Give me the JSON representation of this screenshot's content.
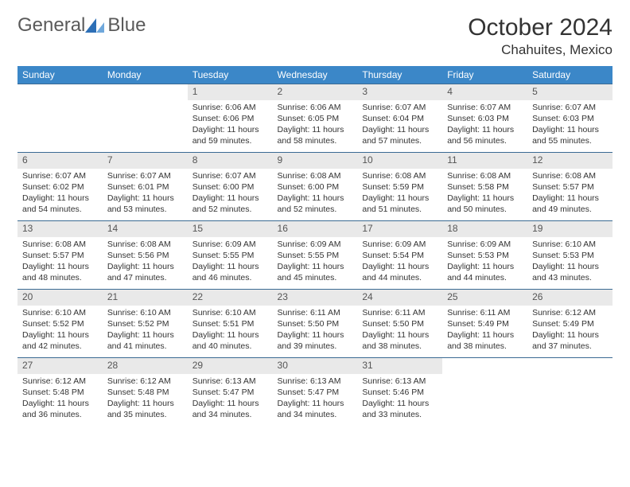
{
  "logo": {
    "text1": "General",
    "text2": "Blue",
    "mark_color": "#2d6fb6"
  },
  "title": "October 2024",
  "location": "Chahuites, Mexico",
  "colors": {
    "header_bg": "#3b87c8",
    "header_text": "#ffffff",
    "daynum_bg": "#e9e9e9",
    "divider": "#3b6a93",
    "text": "#333333"
  },
  "fonts": {
    "title_size": 30,
    "location_size": 17,
    "header_size": 12,
    "daynum_size": 12,
    "info_size": 10.5
  },
  "day_headers": [
    "Sunday",
    "Monday",
    "Tuesday",
    "Wednesday",
    "Thursday",
    "Friday",
    "Saturday"
  ],
  "weeks": [
    [
      {
        "n": "",
        "sunrise": "",
        "sunset": "",
        "daylight": ""
      },
      {
        "n": "",
        "sunrise": "",
        "sunset": "",
        "daylight": ""
      },
      {
        "n": "1",
        "sunrise": "Sunrise: 6:06 AM",
        "sunset": "Sunset: 6:06 PM",
        "daylight": "Daylight: 11 hours and 59 minutes."
      },
      {
        "n": "2",
        "sunrise": "Sunrise: 6:06 AM",
        "sunset": "Sunset: 6:05 PM",
        "daylight": "Daylight: 11 hours and 58 minutes."
      },
      {
        "n": "3",
        "sunrise": "Sunrise: 6:07 AM",
        "sunset": "Sunset: 6:04 PM",
        "daylight": "Daylight: 11 hours and 57 minutes."
      },
      {
        "n": "4",
        "sunrise": "Sunrise: 6:07 AM",
        "sunset": "Sunset: 6:03 PM",
        "daylight": "Daylight: 11 hours and 56 minutes."
      },
      {
        "n": "5",
        "sunrise": "Sunrise: 6:07 AM",
        "sunset": "Sunset: 6:03 PM",
        "daylight": "Daylight: 11 hours and 55 minutes."
      }
    ],
    [
      {
        "n": "6",
        "sunrise": "Sunrise: 6:07 AM",
        "sunset": "Sunset: 6:02 PM",
        "daylight": "Daylight: 11 hours and 54 minutes."
      },
      {
        "n": "7",
        "sunrise": "Sunrise: 6:07 AM",
        "sunset": "Sunset: 6:01 PM",
        "daylight": "Daylight: 11 hours and 53 minutes."
      },
      {
        "n": "8",
        "sunrise": "Sunrise: 6:07 AM",
        "sunset": "Sunset: 6:00 PM",
        "daylight": "Daylight: 11 hours and 52 minutes."
      },
      {
        "n": "9",
        "sunrise": "Sunrise: 6:08 AM",
        "sunset": "Sunset: 6:00 PM",
        "daylight": "Daylight: 11 hours and 52 minutes."
      },
      {
        "n": "10",
        "sunrise": "Sunrise: 6:08 AM",
        "sunset": "Sunset: 5:59 PM",
        "daylight": "Daylight: 11 hours and 51 minutes."
      },
      {
        "n": "11",
        "sunrise": "Sunrise: 6:08 AM",
        "sunset": "Sunset: 5:58 PM",
        "daylight": "Daylight: 11 hours and 50 minutes."
      },
      {
        "n": "12",
        "sunrise": "Sunrise: 6:08 AM",
        "sunset": "Sunset: 5:57 PM",
        "daylight": "Daylight: 11 hours and 49 minutes."
      }
    ],
    [
      {
        "n": "13",
        "sunrise": "Sunrise: 6:08 AM",
        "sunset": "Sunset: 5:57 PM",
        "daylight": "Daylight: 11 hours and 48 minutes."
      },
      {
        "n": "14",
        "sunrise": "Sunrise: 6:08 AM",
        "sunset": "Sunset: 5:56 PM",
        "daylight": "Daylight: 11 hours and 47 minutes."
      },
      {
        "n": "15",
        "sunrise": "Sunrise: 6:09 AM",
        "sunset": "Sunset: 5:55 PM",
        "daylight": "Daylight: 11 hours and 46 minutes."
      },
      {
        "n": "16",
        "sunrise": "Sunrise: 6:09 AM",
        "sunset": "Sunset: 5:55 PM",
        "daylight": "Daylight: 11 hours and 45 minutes."
      },
      {
        "n": "17",
        "sunrise": "Sunrise: 6:09 AM",
        "sunset": "Sunset: 5:54 PM",
        "daylight": "Daylight: 11 hours and 44 minutes."
      },
      {
        "n": "18",
        "sunrise": "Sunrise: 6:09 AM",
        "sunset": "Sunset: 5:53 PM",
        "daylight": "Daylight: 11 hours and 44 minutes."
      },
      {
        "n": "19",
        "sunrise": "Sunrise: 6:10 AM",
        "sunset": "Sunset: 5:53 PM",
        "daylight": "Daylight: 11 hours and 43 minutes."
      }
    ],
    [
      {
        "n": "20",
        "sunrise": "Sunrise: 6:10 AM",
        "sunset": "Sunset: 5:52 PM",
        "daylight": "Daylight: 11 hours and 42 minutes."
      },
      {
        "n": "21",
        "sunrise": "Sunrise: 6:10 AM",
        "sunset": "Sunset: 5:52 PM",
        "daylight": "Daylight: 11 hours and 41 minutes."
      },
      {
        "n": "22",
        "sunrise": "Sunrise: 6:10 AM",
        "sunset": "Sunset: 5:51 PM",
        "daylight": "Daylight: 11 hours and 40 minutes."
      },
      {
        "n": "23",
        "sunrise": "Sunrise: 6:11 AM",
        "sunset": "Sunset: 5:50 PM",
        "daylight": "Daylight: 11 hours and 39 minutes."
      },
      {
        "n": "24",
        "sunrise": "Sunrise: 6:11 AM",
        "sunset": "Sunset: 5:50 PM",
        "daylight": "Daylight: 11 hours and 38 minutes."
      },
      {
        "n": "25",
        "sunrise": "Sunrise: 6:11 AM",
        "sunset": "Sunset: 5:49 PM",
        "daylight": "Daylight: 11 hours and 38 minutes."
      },
      {
        "n": "26",
        "sunrise": "Sunrise: 6:12 AM",
        "sunset": "Sunset: 5:49 PM",
        "daylight": "Daylight: 11 hours and 37 minutes."
      }
    ],
    [
      {
        "n": "27",
        "sunrise": "Sunrise: 6:12 AM",
        "sunset": "Sunset: 5:48 PM",
        "daylight": "Daylight: 11 hours and 36 minutes."
      },
      {
        "n": "28",
        "sunrise": "Sunrise: 6:12 AM",
        "sunset": "Sunset: 5:48 PM",
        "daylight": "Daylight: 11 hours and 35 minutes."
      },
      {
        "n": "29",
        "sunrise": "Sunrise: 6:13 AM",
        "sunset": "Sunset: 5:47 PM",
        "daylight": "Daylight: 11 hours and 34 minutes."
      },
      {
        "n": "30",
        "sunrise": "Sunrise: 6:13 AM",
        "sunset": "Sunset: 5:47 PM",
        "daylight": "Daylight: 11 hours and 34 minutes."
      },
      {
        "n": "31",
        "sunrise": "Sunrise: 6:13 AM",
        "sunset": "Sunset: 5:46 PM",
        "daylight": "Daylight: 11 hours and 33 minutes."
      },
      {
        "n": "",
        "sunrise": "",
        "sunset": "",
        "daylight": ""
      },
      {
        "n": "",
        "sunrise": "",
        "sunset": "",
        "daylight": ""
      }
    ]
  ]
}
